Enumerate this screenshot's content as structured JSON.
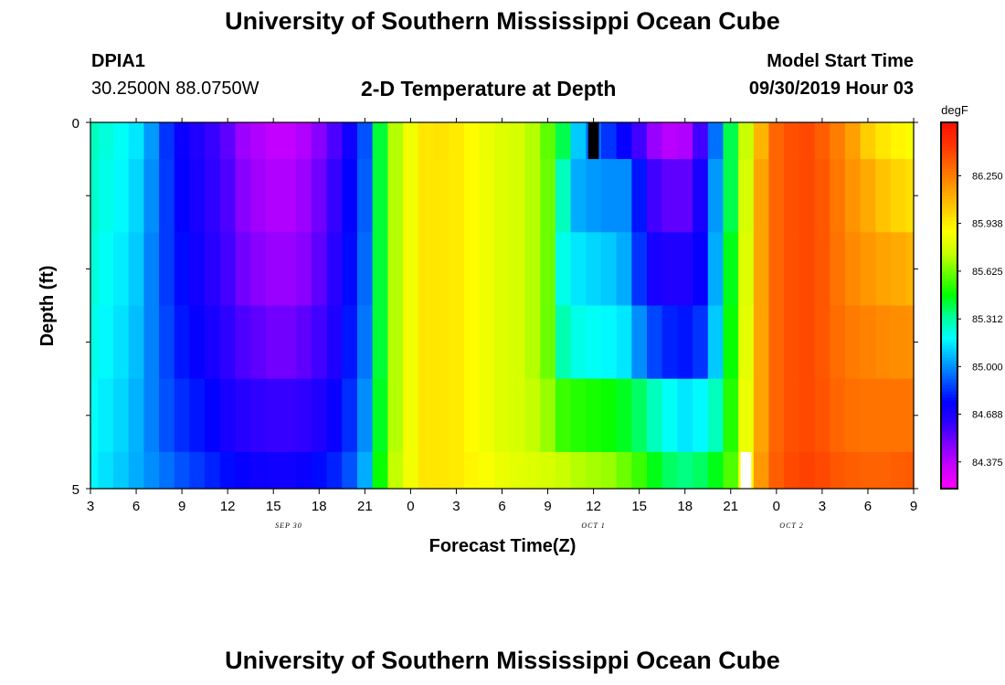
{
  "header": {
    "title": "University of Southern Mississippi Ocean Cube",
    "station_id": "DPIA1",
    "station_coords": "30.2500N 88.0750W",
    "plot_title": "2-D Temperature at Depth",
    "model_start_label": "Model Start Time",
    "model_start_value": "09/30/2019 Hour 03"
  },
  "footer": {
    "title": "University of Southern Mississippi Ocean Cube"
  },
  "chart_data": {
    "type": "heatmap",
    "title": "2-D Temperature at Depth",
    "xlabel": "Forecast Time(Z)",
    "ylabel": "Depth (ft)",
    "x_tick_labels": [
      "3",
      "6",
      "9",
      "12",
      "15",
      "18",
      "21",
      "0",
      "3",
      "6",
      "9",
      "12",
      "15",
      "18",
      "21",
      "0",
      "3",
      "6",
      "9"
    ],
    "date_labels": [
      "SEP 30",
      "OCT 1",
      "OCT 2"
    ],
    "y_tick_labels": [
      "0",
      "5"
    ],
    "ylim": [
      0,
      5
    ],
    "x_range_hours": [
      0,
      54
    ],
    "colorbar": {
      "unit": "degF",
      "tick_labels": [
        "86.250",
        "85.938",
        "85.625",
        "85.312",
        "85.000",
        "84.688",
        "84.375"
      ],
      "range": [
        84.2,
        86.6
      ],
      "colors": [
        "#ff00ff",
        "#cc00ff",
        "#8800ff",
        "#3300ff",
        "#0000ff",
        "#0055ff",
        "#00aaff",
        "#00ffff",
        "#00ff99",
        "#00ff00",
        "#66ff00",
        "#ccff00",
        "#ffff00",
        "#ffcc00",
        "#ff9900",
        "#ff6600",
        "#ff3300",
        "#ff1100"
      ]
    },
    "depth_layers": [
      "0-0.5",
      "0.5-1.5",
      "1.5-2.5",
      "2.5-3.5",
      "3.5-4.5",
      "4.5-5"
    ],
    "time_hours": [
      0,
      1,
      2,
      3,
      4,
      5,
      6,
      7,
      8,
      9,
      10,
      11,
      12,
      13,
      14,
      15,
      16,
      17,
      18,
      19,
      20,
      21,
      22,
      23,
      24,
      25,
      26,
      27,
      28,
      29,
      30,
      31,
      32,
      33,
      34,
      35,
      36,
      37,
      38,
      39,
      40,
      41,
      42,
      43,
      44,
      45,
      46,
      47,
      48,
      49,
      50,
      51,
      52,
      53,
      54
    ],
    "temperature": [
      [
        85.28,
        85.24,
        85.2,
        85.15,
        85.02,
        84.85,
        84.74,
        84.68,
        84.62,
        84.55,
        84.44,
        84.4,
        84.36,
        84.36,
        84.4,
        84.48,
        84.58,
        84.72,
        84.9,
        85.42,
        85.72,
        85.86,
        85.96,
        85.97,
        85.95,
        85.9,
        85.84,
        85.8,
        85.78,
        85.72,
        85.6,
        85.4,
        85.1,
        84.95,
        84.85,
        84.75,
        84.6,
        84.45,
        84.38,
        84.4,
        84.6,
        84.95,
        85.4,
        85.75,
        86.1,
        86.32,
        86.38,
        86.4,
        86.34,
        86.25,
        86.16,
        86.03,
        85.96,
        85.92,
        85.88
      ],
      [
        85.26,
        85.22,
        85.18,
        85.12,
        85.0,
        84.86,
        84.76,
        84.7,
        84.64,
        84.58,
        84.48,
        84.43,
        84.4,
        84.4,
        84.44,
        84.52,
        84.62,
        84.76,
        84.92,
        85.42,
        85.72,
        85.86,
        85.96,
        85.96,
        85.95,
        85.9,
        85.85,
        85.8,
        85.78,
        85.72,
        85.62,
        85.28,
        85.05,
        85.02,
        85.0,
        85.0,
        84.8,
        84.6,
        84.55,
        84.55,
        84.7,
        85.02,
        85.4,
        85.78,
        86.15,
        86.32,
        86.38,
        86.4,
        86.36,
        86.27,
        86.19,
        86.13,
        86.06,
        86.01,
        85.98
      ],
      [
        85.24,
        85.2,
        85.16,
        85.1,
        84.98,
        84.86,
        84.78,
        84.72,
        84.66,
        84.6,
        84.52,
        84.48,
        84.45,
        84.45,
        84.48,
        84.55,
        84.65,
        84.78,
        84.94,
        85.42,
        85.72,
        85.86,
        85.96,
        85.96,
        85.95,
        85.9,
        85.85,
        85.8,
        85.78,
        85.72,
        85.62,
        85.22,
        85.15,
        85.12,
        85.1,
        85.05,
        84.85,
        84.7,
        84.68,
        84.68,
        84.75,
        85.05,
        85.45,
        85.8,
        86.15,
        86.32,
        86.38,
        86.4,
        86.36,
        86.28,
        86.22,
        86.18,
        86.15,
        86.13,
        86.1
      ],
      [
        85.22,
        85.18,
        85.14,
        85.08,
        84.98,
        84.88,
        84.8,
        84.75,
        84.7,
        84.64,
        84.58,
        84.55,
        84.52,
        84.52,
        84.55,
        84.6,
        84.68,
        84.8,
        84.96,
        85.42,
        85.72,
        85.86,
        85.96,
        85.96,
        85.95,
        85.9,
        85.85,
        85.8,
        85.78,
        85.72,
        85.62,
        85.3,
        85.22,
        85.2,
        85.18,
        85.15,
        85.0,
        84.88,
        84.82,
        84.8,
        84.85,
        85.1,
        85.48,
        85.82,
        86.15,
        86.32,
        86.38,
        86.4,
        86.36,
        86.3,
        86.26,
        86.24,
        86.22,
        86.21,
        86.2
      ],
      [
        85.2,
        85.16,
        85.12,
        85.06,
        84.98,
        84.9,
        84.84,
        84.8,
        84.76,
        84.7,
        84.66,
        84.64,
        84.62,
        84.62,
        84.64,
        84.68,
        84.74,
        84.84,
        85.0,
        85.44,
        85.72,
        85.86,
        85.96,
        85.96,
        85.95,
        85.9,
        85.85,
        85.8,
        85.78,
        85.74,
        85.68,
        85.55,
        85.52,
        85.5,
        85.48,
        85.44,
        85.38,
        85.28,
        85.2,
        85.15,
        85.18,
        85.28,
        85.52,
        85.84,
        86.15,
        86.32,
        86.38,
        86.4,
        86.37,
        86.32,
        86.29,
        86.28,
        86.28,
        86.28,
        86.28
      ],
      [
        85.18,
        85.14,
        85.1,
        85.05,
        85.0,
        84.95,
        84.9,
        84.86,
        84.82,
        84.78,
        84.75,
        84.73,
        84.72,
        84.72,
        84.74,
        84.78,
        84.82,
        84.9,
        85.05,
        85.48,
        85.74,
        85.86,
        85.96,
        85.96,
        85.95,
        85.92,
        85.88,
        85.84,
        85.82,
        85.8,
        85.78,
        85.75,
        85.72,
        85.7,
        85.68,
        85.62,
        85.55,
        85.45,
        85.38,
        85.35,
        85.38,
        85.45,
        85.58,
        85.88,
        86.18,
        86.34,
        86.4,
        86.42,
        86.4,
        86.36,
        86.34,
        86.33,
        86.33,
        86.34,
        86.35
      ]
    ],
    "missing_cells": [
      {
        "depth_layer": 0,
        "hour": 33,
        "color": "#000000"
      },
      {
        "depth_layer": 5,
        "hour": 43,
        "color": "#ffffff"
      }
    ]
  }
}
